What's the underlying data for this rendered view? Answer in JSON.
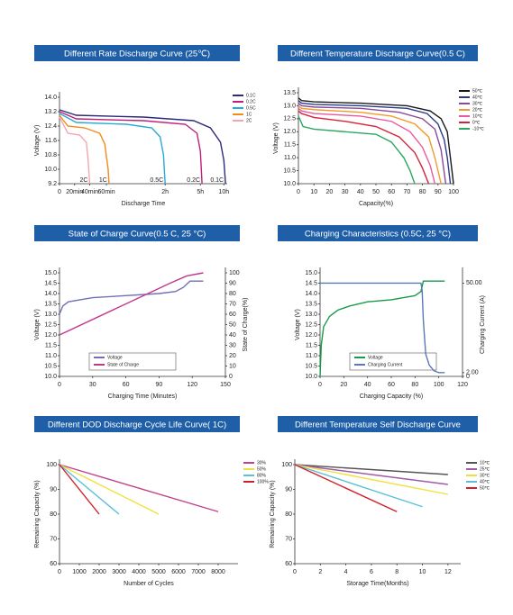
{
  "chart_data": [
    {
      "type": "line",
      "title": "Different Rate Discharge Curve (25℃)",
      "xlabel": "Discharge Time",
      "ylabel": "Voltage (V)",
      "legend": "right",
      "end_labels": true,
      "xlim": [
        0,
        100
      ],
      "xticks": [
        0,
        {
          "value": 9,
          "label": "20min"
        },
        {
          "value": 18,
          "label": "40min"
        },
        {
          "value": 28,
          "label": "60min"
        },
        {
          "value": 63,
          "label": "2h"
        },
        {
          "value": 84,
          "label": "5h"
        },
        {
          "value": 98,
          "label": "10h"
        }
      ],
      "ylim": [
        9.2,
        14.0
      ],
      "yticks": [
        9.2,
        {
          "value": 10.0,
          "label": "10.0"
        },
        10.8,
        11.6,
        12.4,
        13.2,
        {
          "value": 14.0,
          "label": "14.0"
        }
      ],
      "series": [
        {
          "name": "0.1C",
          "color": "#2b2b7c",
          "x": [
            0,
            10,
            50,
            80,
            90,
            96,
            98,
            99
          ],
          "values": [
            13.3,
            13.0,
            12.9,
            12.7,
            12.3,
            11.5,
            10.5,
            9.2
          ]
        },
        {
          "name": "0.2C",
          "color": "#c0207a",
          "x": [
            0,
            10,
            50,
            75,
            82,
            84,
            85
          ],
          "values": [
            13.2,
            12.8,
            12.7,
            12.5,
            12.0,
            11.0,
            9.2
          ]
        },
        {
          "name": "0.5C",
          "color": "#29a9d6",
          "x": [
            0,
            10,
            40,
            55,
            60,
            62,
            63
          ],
          "values": [
            13.1,
            12.6,
            12.5,
            12.3,
            11.8,
            10.8,
            9.2
          ]
        },
        {
          "name": "1C",
          "color": "#f08a1a",
          "x": [
            0,
            5,
            15,
            24,
            27,
            29,
            29.5
          ],
          "values": [
            13.0,
            12.4,
            12.3,
            12.0,
            11.4,
            10.0,
            9.2
          ]
        },
        {
          "name": "2C",
          "color": "#f4a6b0",
          "x": [
            0,
            5,
            12,
            16,
            17,
            18
          ],
          "values": [
            12.9,
            12.0,
            11.9,
            11.5,
            10.6,
            9.2
          ]
        }
      ]
    },
    {
      "type": "line",
      "title": "Different Temperature Discharge Curve(0.5 C)",
      "xlabel": "Capacity(%)",
      "ylabel": "Voltage (V)",
      "legend": "right",
      "xlim": [
        0,
        100
      ],
      "xticks": [
        0,
        10,
        20,
        30,
        40,
        50,
        60,
        70,
        80,
        90,
        100
      ],
      "ylim": [
        10.0,
        13.5
      ],
      "yticks": [
        {
          "value": 10.0,
          "label": "10.0"
        },
        10.5,
        {
          "value": 11.0,
          "label": "11.0"
        },
        11.5,
        {
          "value": 12.0,
          "label": "12.0"
        },
        12.5,
        {
          "value": 13.0,
          "label": "13.0"
        },
        13.5
      ],
      "series": [
        {
          "name": "50℃",
          "color": "#1a1a1a",
          "x": [
            0,
            2,
            10,
            40,
            70,
            85,
            92,
            96,
            98,
            100
          ],
          "values": [
            13.3,
            13.2,
            13.15,
            13.1,
            13.0,
            12.8,
            12.5,
            12.0,
            11.0,
            10.0
          ]
        },
        {
          "name": "40℃",
          "color": "#2c3a8c",
          "x": [
            0,
            2,
            10,
            40,
            70,
            83,
            90,
            94,
            96,
            98
          ],
          "values": [
            13.2,
            13.1,
            13.05,
            13.0,
            12.9,
            12.7,
            12.3,
            11.7,
            11.0,
            10.0
          ]
        },
        {
          "name": "30℃",
          "color": "#8a4a9a",
          "x": [
            0,
            2,
            10,
            40,
            65,
            80,
            88,
            92,
            95
          ],
          "values": [
            13.1,
            13.0,
            12.95,
            12.9,
            12.75,
            12.5,
            12.1,
            11.3,
            10.0
          ]
        },
        {
          "name": "20℃",
          "color": "#f39a2a",
          "x": [
            0,
            2,
            10,
            40,
            60,
            75,
            84,
            88,
            92
          ],
          "values": [
            13.0,
            12.9,
            12.85,
            12.75,
            12.6,
            12.3,
            11.8,
            11.0,
            10.0
          ]
        },
        {
          "name": "10℃",
          "color": "#e85aa0",
          "x": [
            0,
            2,
            10,
            40,
            60,
            72,
            80,
            85,
            88
          ],
          "values": [
            12.9,
            12.8,
            12.7,
            12.6,
            12.4,
            12.0,
            11.4,
            10.7,
            10.0
          ]
        },
        {
          "name": "0℃",
          "color": "#d8203a",
          "x": [
            0,
            2,
            10,
            30,
            50,
            65,
            75,
            80,
            84
          ],
          "values": [
            12.8,
            12.7,
            12.55,
            12.4,
            12.2,
            11.8,
            11.2,
            10.6,
            10.0
          ]
        },
        {
          "name": "-10℃",
          "color": "#2aa860",
          "x": [
            0,
            3,
            10,
            30,
            50,
            60,
            68,
            72,
            75
          ],
          "values": [
            12.6,
            12.2,
            12.1,
            12.0,
            11.9,
            11.6,
            11.0,
            10.5,
            10.0
          ]
        }
      ]
    },
    {
      "type": "line",
      "title": "State of Charge Curve(0.5 C, 25 °C)",
      "xlabel": "Charging Time (Minutes)",
      "ylabel": "Voltage (V)",
      "y2label": "State of Charge(%)",
      "legend": "lower",
      "xlim": [
        0,
        150
      ],
      "xticks": [
        0,
        30,
        60,
        90,
        120,
        150
      ],
      "ylim": [
        10.0,
        15.0
      ],
      "yticks": [
        {
          "value": 10.0,
          "label": "10.0"
        },
        10.5,
        {
          "value": 11.0,
          "label": "11.0"
        },
        11.5,
        {
          "value": 12.0,
          "label": "12.0"
        },
        12.5,
        {
          "value": 13.0,
          "label": "13.0"
        },
        13.5,
        {
          "value": 14.0,
          "label": "14.0"
        },
        14.5,
        {
          "value": 15.0,
          "label": "15.0"
        }
      ],
      "y2lim": [
        0,
        100
      ],
      "y2ticks": [
        0,
        10,
        20,
        30,
        40,
        50,
        60,
        70,
        80,
        90,
        100
      ],
      "series": [
        {
          "name": "Voltage",
          "color": "#7070b8",
          "x": [
            0,
            3,
            8,
            30,
            60,
            90,
            105,
            112,
            118,
            130
          ],
          "values": [
            13.0,
            13.4,
            13.6,
            13.8,
            13.9,
            14.0,
            14.1,
            14.3,
            14.6,
            14.6
          ]
        },
        {
          "name": "State of Charge",
          "color": "#c0388c",
          "axis": "y2",
          "x": [
            0,
            60,
            100,
            115,
            130
          ],
          "values": [
            40,
            70,
            90,
            97,
            100
          ]
        }
      ]
    },
    {
      "type": "line",
      "title": "Charging Characteristics  (0.5C, 25 °C)",
      "xlabel": "Charging Capacity (%)",
      "ylabel": "Voltage (V)",
      "y2label": "Charging Current (A)",
      "legend": "lower",
      "xlim": [
        0,
        120
      ],
      "xticks": [
        0,
        20,
        40,
        60,
        80,
        100,
        120
      ],
      "ylim": [
        10.0,
        15.0
      ],
      "yticks": [
        {
          "value": 10.0,
          "label": "10.0"
        },
        10.5,
        {
          "value": 11.0,
          "label": "11.0"
        },
        11.5,
        {
          "value": 12.0,
          "label": "12.0"
        },
        12.5,
        {
          "value": 13.0,
          "label": "13.0"
        },
        13.5,
        {
          "value": 14.0,
          "label": "14.0"
        },
        14.5,
        {
          "value": 15.0,
          "label": "15.0"
        }
      ],
      "y2lim": [
        0,
        55.5
      ],
      "y2ticks": [
        0,
        {
          "value": 2,
          "label": "2.00"
        },
        {
          "value": 50,
          "label": "50.00"
        }
      ],
      "series": [
        {
          "name": "Voltage",
          "color": "#1a9a4a",
          "x": [
            0,
            1,
            3,
            8,
            15,
            25,
            40,
            60,
            80,
            85,
            87,
            105
          ],
          "values": [
            10.0,
            11.5,
            12.4,
            12.9,
            13.2,
            13.4,
            13.6,
            13.7,
            13.9,
            14.1,
            14.6,
            14.6
          ]
        },
        {
          "name": "Charging Current",
          "color": "#5a78b8",
          "axis": "y2",
          "x": [
            0,
            85,
            86,
            87,
            89,
            92,
            96,
            100,
            105
          ],
          "values": [
            50,
            50,
            46,
            30,
            12,
            6,
            3,
            2,
            2
          ]
        }
      ]
    },
    {
      "type": "line",
      "title": "Different DOD Discharge Cycle Life Curve(    1C)",
      "xlabel": "Number of Cycles",
      "ylabel": "Remaining Capacity (%)",
      "legend": "right",
      "xlim": [
        0,
        9000
      ],
      "xticks": [
        0,
        1000,
        2000,
        3000,
        4000,
        5000,
        6000,
        7000,
        8000
      ],
      "ylim": [
        60,
        100
      ],
      "yticks": [
        60,
        70,
        80,
        90,
        100
      ],
      "series": [
        {
          "name": "30%",
          "color": "#c0448a",
          "x": [
            0,
            8000
          ],
          "values": [
            100,
            81
          ]
        },
        {
          "name": "50%",
          "color": "#f2e03a",
          "x": [
            0,
            5000
          ],
          "values": [
            100,
            80
          ]
        },
        {
          "name": "80%",
          "color": "#5bc0d8",
          "x": [
            0,
            3000
          ],
          "values": [
            100,
            80
          ]
        },
        {
          "name": "100%",
          "color": "#d0202a",
          "x": [
            0,
            2000
          ],
          "values": [
            100,
            80
          ]
        }
      ]
    },
    {
      "type": "line",
      "title": "Different Temperature Self Discharge  Curve",
      "xlabel": "Storage Time(Months)",
      "ylabel": "Remaining Capacity (%)",
      "legend": "right",
      "xlim": [
        0,
        13
      ],
      "xticks": [
        0,
        2,
        4,
        6,
        8,
        10,
        12
      ],
      "ylim": [
        60,
        100
      ],
      "yticks": [
        60,
        70,
        80,
        90,
        100
      ],
      "series": [
        {
          "name": "10℃",
          "color": "#555555",
          "x": [
            0,
            12
          ],
          "values": [
            100,
            96
          ]
        },
        {
          "name": "25℃",
          "color": "#a05aa8",
          "x": [
            0,
            12
          ],
          "values": [
            100,
            92
          ]
        },
        {
          "name": "30℃",
          "color": "#f2e03a",
          "x": [
            0,
            12
          ],
          "values": [
            100,
            88
          ]
        },
        {
          "name": "40℃",
          "color": "#5bc0d8",
          "x": [
            0,
            10
          ],
          "values": [
            100,
            83
          ]
        },
        {
          "name": "50℃",
          "color": "#d0202a",
          "x": [
            0,
            8
          ],
          "values": [
            100,
            81
          ]
        }
      ]
    }
  ]
}
